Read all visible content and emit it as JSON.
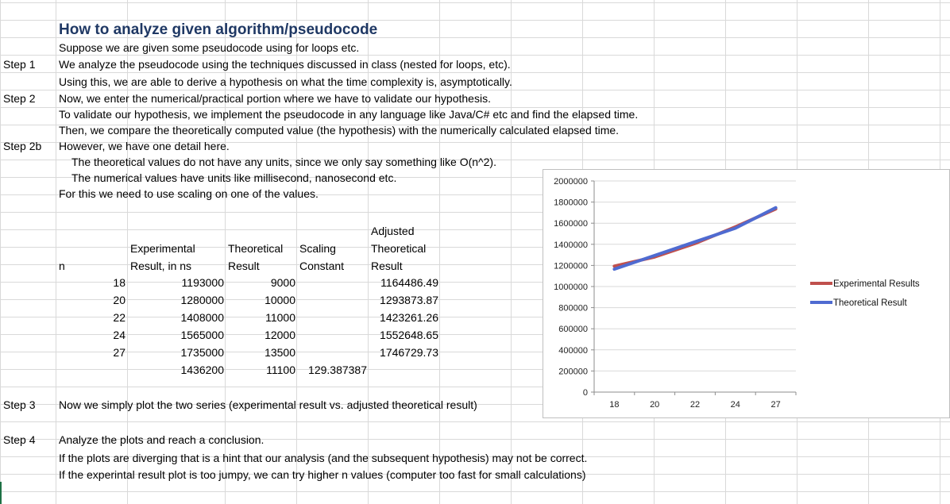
{
  "steps": {
    "step1": "Step 1",
    "step2": "Step 2",
    "step2b": "Step 2b",
    "step3": "Step 3",
    "step4": "Step 4"
  },
  "lines": {
    "title": "How to analyze given algorithm/pseudocode",
    "l1": "Suppose we are given some pseudocode using for loops etc.",
    "l2": "We analyze the pseudocode using the techniques discussed in class (nested for loops, etc).",
    "l3": "Using this, we are able to derive a hypothesis on what the time complexity is, asymptotically.",
    "l4": "Now, we enter the numerical/practical portion where we have to validate our hypothesis.",
    "l5": "To validate our hypothesis, we implement the pseudocode in any language like Java/C# etc and find the elapsed time.",
    "l6": "Then, we compare the theoretically computed value (the hypothesis) with the numerically calculated elapsed time.",
    "l7": "However, we have one detail here.",
    "l8": "The theoretical values do not have any units, since we only say something like O(n^2).",
    "l9": "The numerical values have units like millisecond, nanosecond etc.",
    "l10": "For this we need to use scaling on one of the values.",
    "l11": "Now we simply plot the two series (experimental result vs. adjusted theoretical result)",
    "l12": "Analyze the plots and reach a conclusion.",
    "l13": "If the plots are diverging that is a hint that our analysis (and the subsequent hypothesis) may not be correct.",
    "l14": "If the experintal result plot is too jumpy, we can try higher n values (computer too fast for small calculations)"
  },
  "table": {
    "headers": {
      "n": "n",
      "exp1": "Experimental",
      "exp2": "Result, in ns",
      "theo1": "Theoretical",
      "theo2": "Result",
      "scal1": "Scaling",
      "scal2": "Constant",
      "adj1": "Adjusted",
      "adj2": "Theoretical",
      "adj3": "Result"
    },
    "rows": [
      {
        "n": "18",
        "exp": "1193000",
        "theo": "9000",
        "adj": "1164486.49"
      },
      {
        "n": "20",
        "exp": "1280000",
        "theo": "10000",
        "adj": "1293873.87"
      },
      {
        "n": "22",
        "exp": "1408000",
        "theo": "11000",
        "adj": "1423261.26"
      },
      {
        "n": "24",
        "exp": "1565000",
        "theo": "12000",
        "adj": "1552648.65"
      },
      {
        "n": "27",
        "exp": "1735000",
        "theo": "13500",
        "adj": "1746729.73"
      }
    ],
    "avg": {
      "exp": "1436200",
      "theo": "11100",
      "scal": "129.387387"
    }
  },
  "chart_data": {
    "type": "line",
    "categories": [
      "18",
      "20",
      "22",
      "24",
      "27"
    ],
    "series": [
      {
        "name": "Experimental Results",
        "color": "#c0504d",
        "values": [
          1193000,
          1280000,
          1408000,
          1565000,
          1735000
        ]
      },
      {
        "name": "Theoretical Result",
        "color": "#4f6bd1",
        "values": [
          1164486.49,
          1293873.87,
          1423261.26,
          1552648.65,
          1746729.73
        ]
      }
    ],
    "yticks": [
      "0",
      "200000",
      "400000",
      "600000",
      "800000",
      "1000000",
      "1200000",
      "1400000",
      "1600000",
      "1800000",
      "2000000"
    ],
    "ylim": [
      0,
      2000000
    ],
    "grid": true,
    "legend": "right"
  }
}
